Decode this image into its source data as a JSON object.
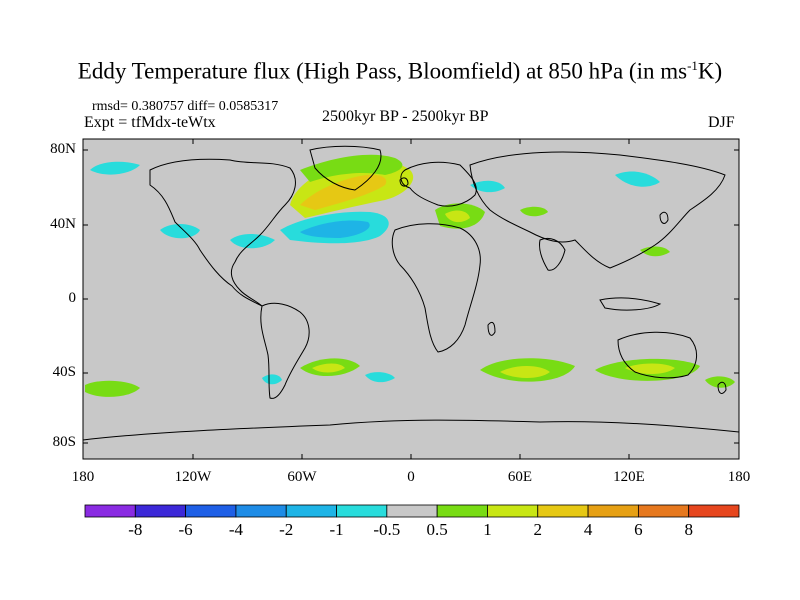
{
  "title": {
    "main": "Eddy Temperature flux (High Pass, Bloomfield) at 850 hPa (in ms",
    "sup": "-1",
    "end": "K)"
  },
  "stats": "rmsd= 0.380757 diff= 0.0585317",
  "experiment": "Expt = tfMdx-teWtx",
  "period": "2500kyr BP - 2500kyr BP",
  "season": "DJF",
  "lat_labels": [
    "80N",
    "40N",
    "0",
    "40S",
    "80S"
  ],
  "lon_labels": [
    "180",
    "120W",
    "60W",
    "0",
    "60E",
    "120E",
    "180"
  ],
  "colorbar": {
    "labels": [
      "-8",
      "-6",
      "-4",
      "-2",
      "-1",
      "-0.5",
      "0.5",
      "1",
      "2",
      "4",
      "6",
      "8"
    ],
    "colors": [
      "#8a2be2",
      "#3c28d8",
      "#1e5fe6",
      "#1e8ce6",
      "#1eb4e6",
      "#28dcdc",
      "#c8c8c8",
      "#78dc14",
      "#c8e614",
      "#e6c814",
      "#e6a014",
      "#e6781e",
      "#e6461e"
    ]
  },
  "map": {
    "ocean_color": "#c8c8c8",
    "background": "#ffffff"
  }
}
